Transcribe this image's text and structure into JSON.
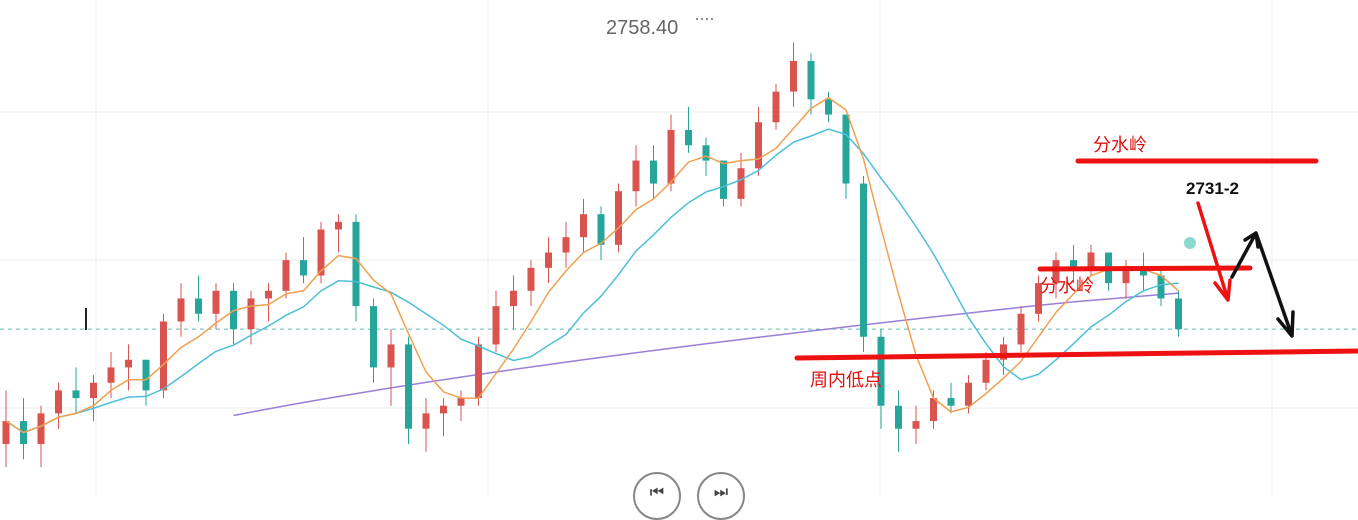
{
  "chart_data": {
    "type": "candlestick",
    "title": "",
    "xlabel": "",
    "ylabel": "",
    "ylim": [
      2700,
      2762
    ],
    "grid": true,
    "max_label": "2758.40",
    "current_price": 2721,
    "ohlc": [
      [
        2706,
        2713,
        2703,
        2709
      ],
      [
        2709,
        2712,
        2704,
        2706
      ],
      [
        2706,
        2711,
        2703,
        2710
      ],
      [
        2710,
        2714,
        2708,
        2713
      ],
      [
        2713,
        2716,
        2710,
        2712
      ],
      [
        2712,
        2715,
        2709,
        2714
      ],
      [
        2714,
        2718,
        2712,
        2716
      ],
      [
        2716,
        2719,
        2713,
        2717
      ],
      [
        2717,
        2717,
        2711,
        2713
      ],
      [
        2713,
        2723,
        2712,
        2722
      ],
      [
        2722,
        2727,
        2720,
        2725
      ],
      [
        2725,
        2728,
        2722,
        2723
      ],
      [
        2723,
        2727,
        2721,
        2726
      ],
      [
        2726,
        2727,
        2719,
        2721
      ],
      [
        2721,
        2726,
        2719,
        2725
      ],
      [
        2725,
        2727,
        2722,
        2726
      ],
      [
        2726,
        2731,
        2725,
        2730
      ],
      [
        2730,
        2733,
        2727,
        2728
      ],
      [
        2728,
        2735,
        2727,
        2734
      ],
      [
        2734,
        2736,
        2731,
        2735
      ],
      [
        2735,
        2736,
        2722,
        2724
      ],
      [
        2724,
        2725,
        2714,
        2716
      ],
      [
        2716,
        2721,
        2711,
        2719
      ],
      [
        2719,
        2720,
        2706,
        2708
      ],
      [
        2708,
        2712,
        2705,
        2710
      ],
      [
        2710,
        2712,
        2707,
        2711
      ],
      [
        2711,
        2713,
        2709,
        2712
      ],
      [
        2712,
        2720,
        2711,
        2719
      ],
      [
        2719,
        2726,
        2718,
        2724
      ],
      [
        2724,
        2728,
        2721,
        2726
      ],
      [
        2726,
        2730,
        2724,
        2729
      ],
      [
        2729,
        2733,
        2727,
        2731
      ],
      [
        2731,
        2735,
        2729,
        2733
      ],
      [
        2733,
        2738,
        2731,
        2736
      ],
      [
        2736,
        2737,
        2730,
        2732
      ],
      [
        2732,
        2740,
        2731,
        2739
      ],
      [
        2739,
        2745,
        2737,
        2743
      ],
      [
        2743,
        2745,
        2738,
        2740
      ],
      [
        2740,
        2749,
        2739,
        2747
      ],
      [
        2747,
        2750,
        2744,
        2745
      ],
      [
        2745,
        2746,
        2741,
        2743
      ],
      [
        2743,
        2743,
        2737,
        2738
      ],
      [
        2738,
        2744,
        2737,
        2742
      ],
      [
        2742,
        2750,
        2741,
        2748
      ],
      [
        2748,
        2753,
        2747,
        2752
      ],
      [
        2752,
        2758.4,
        2750,
        2756
      ],
      [
        2756,
        2757,
        2749,
        2751
      ],
      [
        2751,
        2752,
        2748,
        2749
      ],
      [
        2749,
        2749,
        2738,
        2740
      ],
      [
        2740,
        2741,
        2718,
        2720
      ],
      [
        2720,
        2721,
        2708,
        2711
      ],
      [
        2711,
        2713,
        2705,
        2708
      ],
      [
        2708,
        2711,
        2706,
        2709
      ],
      [
        2709,
        2713,
        2708,
        2712
      ],
      [
        2712,
        2714,
        2710,
        2711
      ],
      [
        2711,
        2715,
        2710,
        2714
      ],
      [
        2714,
        2718,
        2713,
        2717
      ],
      [
        2717,
        2720,
        2715,
        2719
      ],
      [
        2719,
        2724,
        2718,
        2723
      ],
      [
        2723,
        2728,
        2722,
        2727
      ],
      [
        2727,
        2731,
        2725,
        2730
      ],
      [
        2730,
        2732,
        2727,
        2729
      ],
      [
        2729,
        2732,
        2728,
        2731
      ],
      [
        2731,
        2731,
        2726,
        2727
      ],
      [
        2727,
        2730,
        2725,
        2729
      ],
      [
        2729,
        2731,
        2726,
        2728
      ],
      [
        2728,
        2729,
        2724,
        2725
      ],
      [
        2725,
        2726,
        2720,
        2721
      ]
    ],
    "annotations": [
      {
        "text": "分水岭",
        "kind": "resistance"
      },
      {
        "text": "分水岭",
        "kind": "support"
      },
      {
        "text": "周内低点",
        "kind": "weekly-low"
      },
      {
        "text": "2731-2",
        "kind": "target"
      }
    ]
  },
  "nav": {
    "prev_icon": "skip-prev-icon",
    "next_icon": "skip-next-icon",
    "prev_glyph": "⏮",
    "next_glyph": "⏭"
  }
}
